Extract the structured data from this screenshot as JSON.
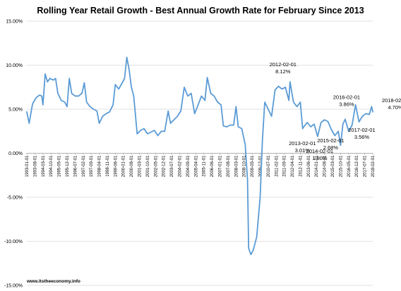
{
  "chart_data": {
    "type": "line",
    "title": "Rolling Year Retail Growth - Best Annual Growth Rate for February Since 2013",
    "xlabel": "",
    "ylabel": "",
    "ylim": [
      -15,
      15
    ],
    "y_ticks": [
      "15.00%",
      "10.00%",
      "5.00%",
      "0.00%",
      "-5.00%",
      "-10.00%",
      "-15.00%"
    ],
    "y_tick_values": [
      15,
      10,
      5,
      0,
      -5,
      -10,
      -15
    ],
    "x_range": [
      "1993-01-01",
      "2018-02-01"
    ],
    "x_tick_labels": [
      "1993-01-01",
      "1993-08-01",
      "1994-03-01",
      "1994-10-01",
      "1995-05-01",
      "1995-12-01",
      "1996-07-01",
      "1997-02-01",
      "1997-09-01",
      "1998-04-01",
      "1998-11-01",
      "1999-06-01",
      "2000-01-01",
      "2000-08-01",
      "2001-03-01",
      "2001-10-01",
      "2002-05-01",
      "2002-12-01",
      "2003-07-01",
      "2004-02-01",
      "2004-09-01",
      "2005-04-01",
      "2005-11-01",
      "2006-06-01",
      "2007-01-01",
      "2007-08-01",
      "2008-03-01",
      "2008-10-01",
      "2009-05-01",
      "2009-12-01",
      "2010-07-01",
      "2011-02-01",
      "2011-09-01",
      "2012-04-01",
      "2012-11-01",
      "2013-06-01",
      "2014-01-01",
      "2014-08-01",
      "2015-03-01",
      "2015-10-01",
      "2016-05-01",
      "2016-12-01",
      "2017-07-01",
      "2018-02-01"
    ],
    "grid": true,
    "legend": "none",
    "series": [
      {
        "color": "#5b9bd5",
        "points": [
          [
            "1993-01-01",
            4.7
          ],
          [
            "1993-03-01",
            3.4
          ],
          [
            "1993-06-01",
            5.6
          ],
          [
            "1993-09-01",
            6.3
          ],
          [
            "1993-12-01",
            6.6
          ],
          [
            "1994-02-01",
            6.5
          ],
          [
            "1994-03-01",
            5.5
          ],
          [
            "1994-05-01",
            9.0
          ],
          [
            "1994-07-01",
            8.1
          ],
          [
            "1994-09-01",
            8.5
          ],
          [
            "1994-12-01",
            8.3
          ],
          [
            "1995-02-01",
            8.5
          ],
          [
            "1995-04-01",
            6.8
          ],
          [
            "1995-07-01",
            6.0
          ],
          [
            "1995-10-01",
            5.8
          ],
          [
            "1995-12-01",
            5.3
          ],
          [
            "1996-02-01",
            8.5
          ],
          [
            "1996-04-01",
            6.8
          ],
          [
            "1996-07-01",
            6.5
          ],
          [
            "1996-10-01",
            6.5
          ],
          [
            "1997-01-01",
            6.8
          ],
          [
            "1997-03-01",
            8.0
          ],
          [
            "1997-05-01",
            5.8
          ],
          [
            "1997-08-01",
            5.3
          ],
          [
            "1997-11-01",
            5.0
          ],
          [
            "1998-02-01",
            4.8
          ],
          [
            "1998-04-01",
            3.4
          ],
          [
            "1998-07-01",
            4.2
          ],
          [
            "1998-10-01",
            4.5
          ],
          [
            "1999-01-01",
            4.7
          ],
          [
            "1999-04-01",
            5.5
          ],
          [
            "1999-06-01",
            7.8
          ],
          [
            "1999-09-01",
            7.3
          ],
          [
            "1999-12-01",
            8.0
          ],
          [
            "2000-02-01",
            8.5
          ],
          [
            "2000-04-01",
            10.9
          ],
          [
            "2000-06-01",
            9.5
          ],
          [
            "2000-08-01",
            7.5
          ],
          [
            "2000-10-01",
            6.5
          ],
          [
            "2001-01-01",
            2.2
          ],
          [
            "2001-04-01",
            2.6
          ],
          [
            "2001-07-01",
            2.8
          ],
          [
            "2001-10-01",
            2.2
          ],
          [
            "2002-01-01",
            2.4
          ],
          [
            "2002-04-01",
            2.6
          ],
          [
            "2002-07-01",
            2.0
          ],
          [
            "2002-10-01",
            2.5
          ],
          [
            "2003-01-01",
            2.5
          ],
          [
            "2003-04-01",
            4.8
          ],
          [
            "2003-06-01",
            3.4
          ],
          [
            "2003-09-01",
            3.8
          ],
          [
            "2003-12-01",
            4.2
          ],
          [
            "2004-03-01",
            4.8
          ],
          [
            "2004-06-01",
            7.5
          ],
          [
            "2004-09-01",
            6.5
          ],
          [
            "2004-12-01",
            6.8
          ],
          [
            "2005-03-01",
            4.5
          ],
          [
            "2005-06-01",
            5.5
          ],
          [
            "2005-09-01",
            6.5
          ],
          [
            "2005-12-01",
            6.0
          ],
          [
            "2006-02-01",
            8.6
          ],
          [
            "2006-05-01",
            6.8
          ],
          [
            "2006-08-01",
            6.5
          ],
          [
            "2006-11-01",
            5.8
          ],
          [
            "2007-02-01",
            5.5
          ],
          [
            "2007-04-01",
            3.1
          ],
          [
            "2007-07-01",
            3.0
          ],
          [
            "2007-10-01",
            3.2
          ],
          [
            "2008-01-01",
            3.2
          ],
          [
            "2008-03-01",
            5.3
          ],
          [
            "2008-05-01",
            3.0
          ],
          [
            "2008-08-01",
            2.8
          ],
          [
            "2008-11-01",
            1.0
          ],
          [
            "2009-01-01",
            -3.0
          ],
          [
            "2009-02-01",
            -10.8
          ],
          [
            "2009-04-01",
            -11.5
          ],
          [
            "2009-06-01",
            -11.0
          ],
          [
            "2009-09-01",
            -9.5
          ],
          [
            "2009-12-01",
            -5.0
          ],
          [
            "2010-02-01",
            1.5
          ],
          [
            "2010-04-01",
            5.8
          ],
          [
            "2010-07-01",
            5.0
          ],
          [
            "2010-10-01",
            4.2
          ],
          [
            "2011-01-01",
            7.2
          ],
          [
            "2011-04-01",
            7.6
          ],
          [
            "2011-07-01",
            7.3
          ],
          [
            "2011-10-01",
            7.5
          ],
          [
            "2012-01-01",
            6.0
          ],
          [
            "2012-02-01",
            8.12
          ],
          [
            "2012-05-01",
            5.8
          ],
          [
            "2012-08-01",
            5.3
          ],
          [
            "2012-11-01",
            5.8
          ],
          [
            "2013-01-01",
            2.8
          ],
          [
            "2013-02-01",
            3.01
          ],
          [
            "2013-05-01",
            3.5
          ],
          [
            "2013-08-01",
            3.0
          ],
          [
            "2013-11-01",
            3.3
          ],
          [
            "2014-02-01",
            1.9
          ],
          [
            "2014-05-01",
            3.5
          ],
          [
            "2014-08-01",
            3.8
          ],
          [
            "2014-11-01",
            3.6
          ],
          [
            "2015-02-01",
            2.68
          ],
          [
            "2015-05-01",
            2.0
          ],
          [
            "2015-08-01",
            2.5
          ],
          [
            "2015-10-01",
            0.9
          ],
          [
            "2015-12-01",
            3.3
          ],
          [
            "2016-02-01",
            3.86
          ],
          [
            "2016-05-01",
            2.5
          ],
          [
            "2016-08-01",
            3.2
          ],
          [
            "2016-11-01",
            5.5
          ],
          [
            "2017-02-01",
            3.56
          ],
          [
            "2017-05-01",
            4.2
          ],
          [
            "2017-08-01",
            4.5
          ],
          [
            "2017-11-01",
            4.4
          ],
          [
            "2018-01-01",
            5.3
          ],
          [
            "2018-02-01",
            4.7
          ]
        ]
      }
    ],
    "annotations": [
      {
        "date_label": "2012-02-01",
        "value_label": "8.12%"
      },
      {
        "date_label": "2013-02-01",
        "value_label": "3.01%"
      },
      {
        "date_label": "2014-02-01",
        "value_label": "1.90%"
      },
      {
        "date_label": "2015-02-01",
        "value_label": "2.68%"
      },
      {
        "date_label": "2016-02-01",
        "value_label": "3.86%"
      },
      {
        "date_label": "2017-02-01",
        "value_label": "3.56%"
      },
      {
        "date_label": "2018-02-01",
        "value_label": "4.70%"
      }
    ]
  },
  "source": "www.itstheeconomy.info"
}
